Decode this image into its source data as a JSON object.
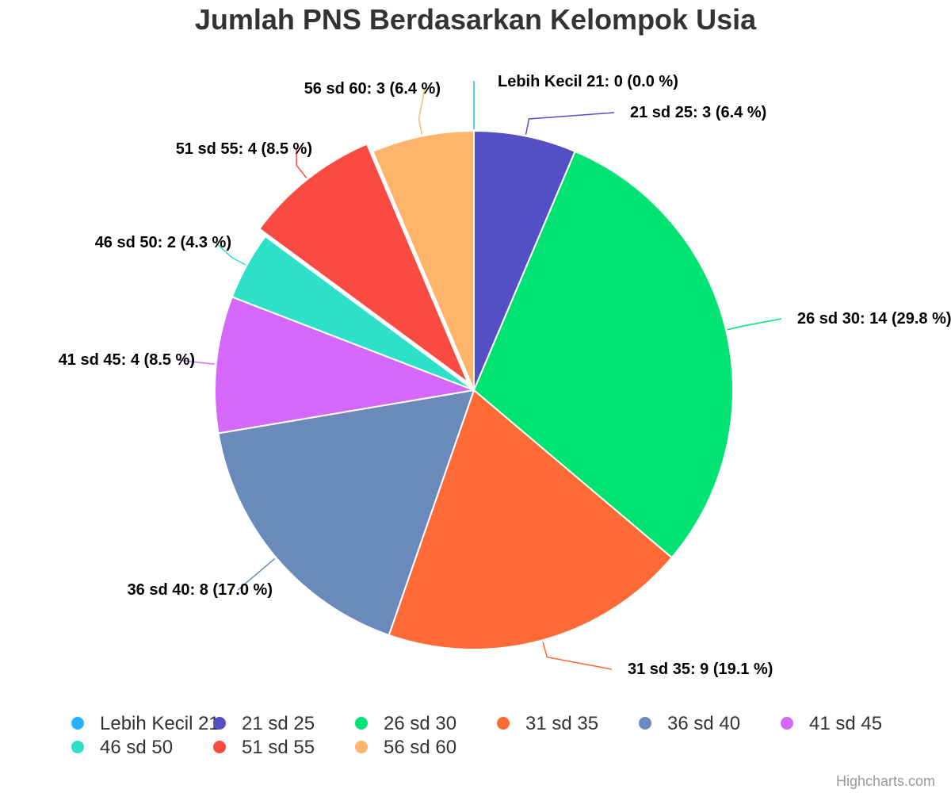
{
  "chart_data": {
    "type": "pie",
    "title": "Jumlah PNS Berdasarkan Kelompok Usia",
    "categories": [
      "Lebih Kecil 21",
      "21 sd 25",
      "26 sd 30",
      "31 sd 35",
      "36 sd 40",
      "41 sd 45",
      "46 sd 50",
      "51 sd 55",
      "56 sd 60"
    ],
    "values": [
      0,
      3,
      14,
      9,
      8,
      4,
      2,
      4,
      3
    ],
    "percentages": [
      "0.0 %",
      "6.4 %",
      "29.8 %",
      "19.1 %",
      "17.0 %",
      "8.5 %",
      "4.3 %",
      "8.5 %",
      "6.4 %"
    ],
    "colors": [
      "#2caffe",
      "#544fc5",
      "#00e272",
      "#fe6a35",
      "#6b8abc",
      "#d568fb",
      "#2ee0ca",
      "#fa4b42",
      "#feb56a"
    ],
    "sliced": [
      false,
      false,
      false,
      false,
      false,
      false,
      false,
      true,
      false
    ],
    "legend_position": "bottom",
    "credits": "Highcharts.com"
  }
}
